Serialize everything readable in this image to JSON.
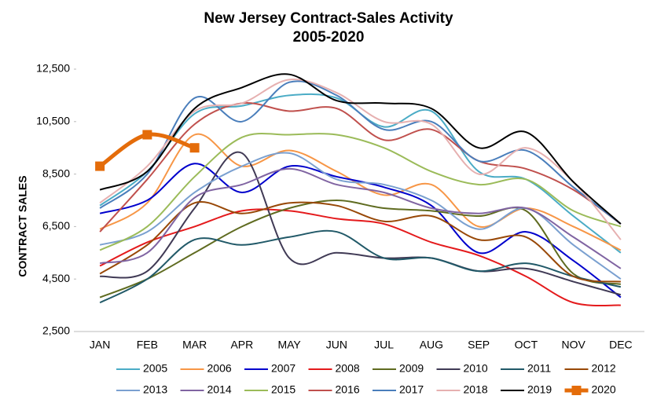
{
  "chart_data": {
    "type": "line",
    "title": "New Jersey Contract-Sales Activity",
    "subtitle": "2005-2020",
    "y_label": "CONTRACT SALES",
    "categories": [
      "JAN",
      "FEB",
      "MAR",
      "APR",
      "MAY",
      "JUN",
      "JUL",
      "AUG",
      "SEP",
      "OCT",
      "NOV",
      "DEC"
    ],
    "ylim": [
      2500,
      12500
    ],
    "yticks": [
      {
        "value": 2500,
        "label": "2,500"
      },
      {
        "value": 4500,
        "label": "4,500"
      },
      {
        "value": 6500,
        "label": "6,500"
      },
      {
        "value": 8500,
        "label": "8,500"
      },
      {
        "value": 10500,
        "label": "10,500"
      },
      {
        "value": 12500,
        "label": "12,500"
      }
    ],
    "grid": false,
    "legend": "bottom",
    "series": [
      {
        "name": "2005",
        "color": "#4bacc6",
        "values": [
          7300,
          8600,
          10800,
          11100,
          11500,
          11400,
          10300,
          10900,
          8600,
          8300,
          6900,
          5500
        ]
      },
      {
        "name": "2006",
        "color": "#f79646",
        "values": [
          6400,
          7400,
          10000,
          8800,
          9400,
          8600,
          7700,
          8100,
          6500,
          7200,
          6500,
          5600
        ]
      },
      {
        "name": "2007",
        "color": "#0000cc",
        "values": [
          7000,
          7500,
          8900,
          7800,
          8800,
          8400,
          8000,
          7300,
          5500,
          6300,
          5200,
          3800
        ]
      },
      {
        "name": "2008",
        "color": "#e41a1c",
        "values": [
          5000,
          5900,
          6500,
          7100,
          7100,
          6800,
          6600,
          5900,
          5400,
          4600,
          3600,
          3500
        ]
      },
      {
        "name": "2009",
        "color": "#5f6b20",
        "values": [
          3800,
          4500,
          5500,
          6500,
          7200,
          7500,
          7200,
          7100,
          6900,
          7100,
          4700,
          4300
        ]
      },
      {
        "name": "2010",
        "color": "#403a55",
        "values": [
          4600,
          4800,
          7200,
          9300,
          5300,
          5500,
          5300,
          5300,
          4800,
          4900,
          4400,
          3900
        ]
      },
      {
        "name": "2011",
        "color": "#215968",
        "values": [
          3600,
          4500,
          6000,
          5800,
          6100,
          6300,
          5300,
          5300,
          4800,
          5100,
          4600,
          4200
        ]
      },
      {
        "name": "2012",
        "color": "#984807",
        "values": [
          4700,
          5800,
          7400,
          7000,
          7400,
          7300,
          6700,
          6900,
          6000,
          6100,
          4600,
          4400
        ]
      },
      {
        "name": "2013",
        "color": "#7aa0d0",
        "values": [
          5800,
          6300,
          7800,
          8800,
          9300,
          8300,
          8100,
          7500,
          6400,
          7200,
          5800,
          4500
        ]
      },
      {
        "name": "2014",
        "color": "#8064a2",
        "values": [
          5100,
          5500,
          7600,
          8100,
          8700,
          8100,
          7800,
          7200,
          7000,
          7200,
          6100,
          4900
        ]
      },
      {
        "name": "2015",
        "color": "#9bbb59",
        "values": [
          5600,
          6500,
          8400,
          9900,
          10000,
          10000,
          9500,
          8600,
          8100,
          8300,
          7100,
          6500
        ]
      },
      {
        "name": "2016",
        "color": "#c0504d",
        "values": [
          6300,
          8300,
          10400,
          11200,
          10900,
          11000,
          9800,
          10200,
          9000,
          8700,
          7900,
          6600
        ]
      },
      {
        "name": "2017",
        "color": "#4a7ebb",
        "values": [
          7200,
          8500,
          11400,
          10500,
          12000,
          11500,
          10200,
          10500,
          9000,
          9400,
          8000,
          6600
        ]
      },
      {
        "name": "2018",
        "color": "#e6b0b0",
        "values": [
          7400,
          8800,
          10900,
          11200,
          12100,
          11600,
          10500,
          10400,
          8500,
          9500,
          8200,
          6000
        ]
      },
      {
        "name": "2019",
        "color": "#000000",
        "values": [
          7900,
          8600,
          11000,
          11800,
          12300,
          11300,
          11200,
          11000,
          9500,
          10100,
          8200,
          6600
        ]
      },
      {
        "name": "2020",
        "color": "#e46c0a",
        "values": [
          8800,
          10000,
          9500,
          null,
          null,
          null,
          null,
          null,
          null,
          null,
          null,
          null
        ]
      }
    ]
  }
}
